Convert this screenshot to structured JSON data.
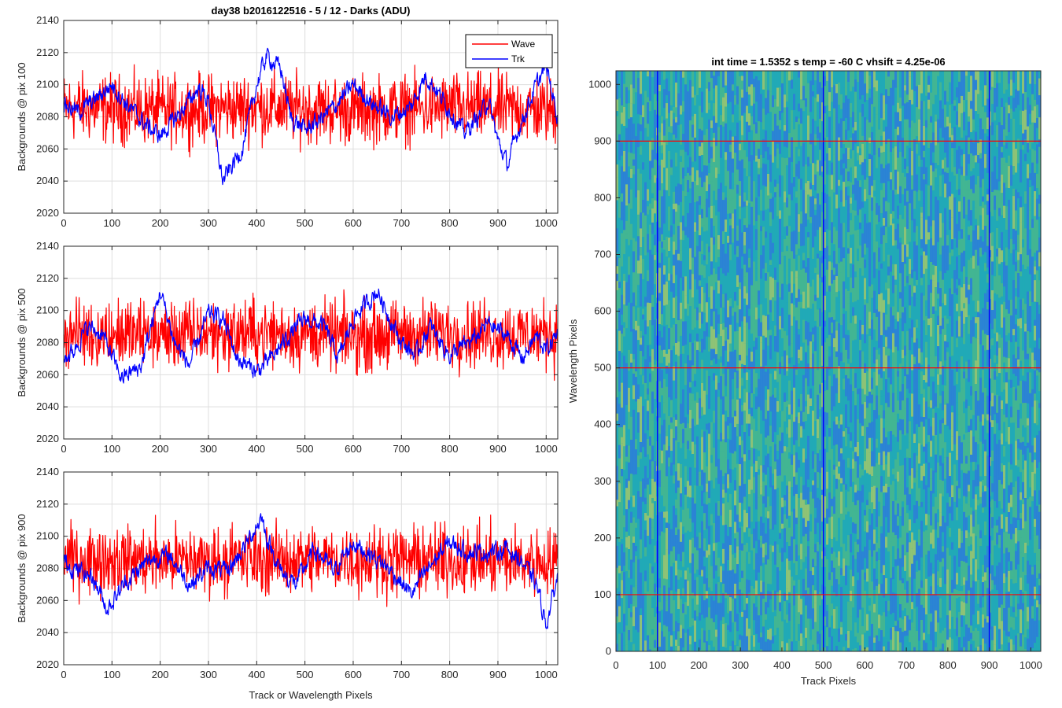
{
  "figure_title": "day38 b2016122516 - 5 / 12 - Darks (ADU)",
  "colors": {
    "wave": "#ff0000",
    "trk": "#0000ff",
    "grid": "#dedede",
    "axis": "#262626"
  },
  "chart_data": [
    {
      "type": "line",
      "ylabel": "Backgrounds @ pix 100",
      "xlabel": "",
      "xlim": [
        0,
        1024
      ],
      "ylim": [
        2020,
        2140
      ],
      "xticks": [
        0,
        100,
        200,
        300,
        400,
        500,
        600,
        700,
        800,
        900,
        1000
      ],
      "yticks": [
        2020,
        2040,
        2060,
        2080,
        2100,
        2120,
        2140
      ],
      "grid": true,
      "legend": {
        "location": "top-right",
        "entries": [
          "Wave",
          "Trk"
        ]
      },
      "series": [
        {
          "name": "Wave",
          "color": "#ff0000",
          "noise": 13,
          "x": [
            0,
            100,
            200,
            300,
            400,
            500,
            600,
            700,
            800,
            900,
            1024
          ],
          "y": [
            2086,
            2085,
            2084,
            2085,
            2086,
            2085,
            2084,
            2085,
            2086,
            2085,
            2084
          ]
        },
        {
          "name": "Trk",
          "color": "#0000ff",
          "noise": 4,
          "x": [
            0,
            30,
            70,
            100,
            130,
            170,
            200,
            240,
            280,
            300,
            330,
            370,
            400,
            420,
            450,
            470,
            500,
            530,
            560,
            600,
            640,
            680,
            720,
            750,
            770,
            800,
            830,
            860,
            880,
            900,
            920,
            940,
            960,
            980,
            1000,
            1024
          ],
          "y": [
            2088,
            2083,
            2092,
            2100,
            2088,
            2075,
            2068,
            2082,
            2098,
            2090,
            2040,
            2060,
            2100,
            2118,
            2110,
            2080,
            2072,
            2078,
            2086,
            2100,
            2088,
            2080,
            2086,
            2106,
            2098,
            2084,
            2070,
            2080,
            2090,
            2065,
            2050,
            2070,
            2085,
            2100,
            2112,
            2080
          ]
        }
      ]
    },
    {
      "type": "line",
      "ylabel": "Backgrounds @ pix 500",
      "xlabel": "",
      "xlim": [
        0,
        1024
      ],
      "ylim": [
        2020,
        2140
      ],
      "xticks": [
        0,
        100,
        200,
        300,
        400,
        500,
        600,
        700,
        800,
        900,
        1000
      ],
      "yticks": [
        2020,
        2040,
        2060,
        2080,
        2100,
        2120,
        2140
      ],
      "grid": true,
      "series": [
        {
          "name": "Wave",
          "color": "#ff0000",
          "noise": 13,
          "x": [
            0,
            200,
            400,
            600,
            800,
            1024
          ],
          "y": [
            2086,
            2085,
            2086,
            2084,
            2086,
            2085
          ]
        },
        {
          "name": "Trk",
          "color": "#0000ff",
          "noise": 4,
          "x": [
            0,
            20,
            50,
            80,
            120,
            160,
            200,
            230,
            260,
            300,
            330,
            360,
            400,
            430,
            460,
            500,
            540,
            570,
            600,
            650,
            700,
            730,
            760,
            800,
            850,
            880,
            920,
            950,
            980,
            1000,
            1024
          ],
          "y": [
            2070,
            2075,
            2090,
            2085,
            2058,
            2065,
            2112,
            2080,
            2066,
            2098,
            2095,
            2070,
            2062,
            2070,
            2082,
            2095,
            2090,
            2070,
            2095,
            2112,
            2080,
            2072,
            2090,
            2072,
            2082,
            2092,
            2084,
            2070,
            2084,
            2075,
            2086
          ]
        }
      ]
    },
    {
      "type": "line",
      "ylabel": "Backgrounds @ pix 900",
      "xlabel": "Track or Wavelength Pixels",
      "xlim": [
        0,
        1024
      ],
      "ylim": [
        2020,
        2140
      ],
      "xticks": [
        0,
        100,
        200,
        300,
        400,
        500,
        600,
        700,
        800,
        900,
        1000
      ],
      "yticks": [
        2020,
        2040,
        2060,
        2080,
        2100,
        2120,
        2140
      ],
      "grid": true,
      "series": [
        {
          "name": "Wave",
          "color": "#ff0000",
          "noise": 13,
          "x": [
            0,
            250,
            500,
            750,
            1024
          ],
          "y": [
            2086,
            2085,
            2086,
            2085,
            2084
          ]
        },
        {
          "name": "Trk",
          "color": "#0000ff",
          "noise": 4,
          "x": [
            0,
            20,
            60,
            90,
            130,
            180,
            220,
            260,
            300,
            340,
            380,
            410,
            420,
            450,
            480,
            520,
            560,
            600,
            640,
            680,
            720,
            760,
            800,
            840,
            880,
            920,
            950,
            980,
            1000,
            1024
          ],
          "y": [
            2085,
            2080,
            2075,
            2055,
            2072,
            2086,
            2088,
            2070,
            2080,
            2078,
            2096,
            2112,
            2100,
            2078,
            2070,
            2092,
            2078,
            2096,
            2088,
            2078,
            2064,
            2082,
            2096,
            2090,
            2090,
            2092,
            2084,
            2070,
            2045,
            2075
          ]
        }
      ]
    },
    {
      "type": "heatmap",
      "title": "int time = 1.5352 s    temp = -60 C    vhsift = 4.25e-06",
      "xlabel": "Track Pixels",
      "ylabel": "Wavelength Pixels",
      "xlim": [
        0,
        1024
      ],
      "ylim": [
        0,
        1024
      ],
      "xticks": [
        0,
        100,
        200,
        300,
        400,
        500,
        600,
        700,
        800,
        900,
        1000
      ],
      "yticks": [
        0,
        100,
        200,
        300,
        400,
        500,
        600,
        700,
        800,
        900,
        1000
      ],
      "colormap": [
        "#2a7fd8",
        "#1faab6",
        "#45b98c",
        "#9cc86b"
      ],
      "marker_vertical_lines": {
        "x": [
          100,
          500,
          900
        ],
        "color": "#0000ff"
      },
      "marker_horizontal_lines": {
        "y": [
          100,
          500,
          900
        ],
        "color": "#ff0000"
      }
    }
  ]
}
